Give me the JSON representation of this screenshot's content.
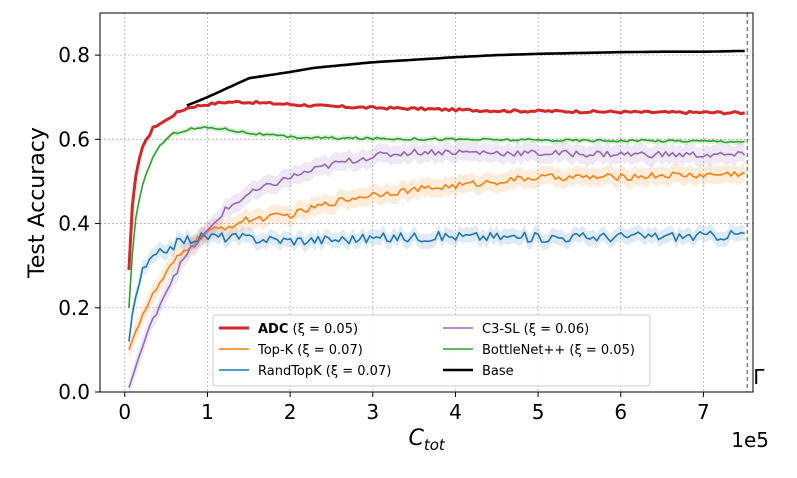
{
  "chart_data": {
    "type": "line",
    "title": "",
    "xlabel_main": "C",
    "xlabel_sub": "tot",
    "ylabel": "Test Accuracy",
    "x_scale_label": "1e5",
    "xlim": [
      -0.3,
      7.6
    ],
    "ylim": [
      0.0,
      0.9
    ],
    "x_ticks": [
      0,
      1,
      2,
      3,
      4,
      5,
      6,
      7
    ],
    "y_ticks": [
      0.0,
      0.2,
      0.4,
      0.6,
      0.8
    ],
    "y_tick_labels": [
      "0.0",
      "0.2",
      "0.4",
      "0.6",
      "0.8"
    ],
    "grid": true,
    "vline": {
      "x": 7.53,
      "label": "Γ"
    },
    "legend_location": "lower-center",
    "series": [
      {
        "name": "ADC",
        "name_suffix": " (ξ = 0.05)",
        "bold_name": true,
        "color": "#d62728",
        "width": 3,
        "x": [
          0.05,
          0.08,
          0.12,
          0.16,
          0.2,
          0.25,
          0.3,
          0.35,
          0.4,
          0.5,
          0.6,
          0.7,
          0.8,
          1.0,
          1.2,
          1.4,
          1.6,
          1.8,
          2.0,
          2.5,
          3.0,
          3.5,
          4.0,
          4.5,
          5.0,
          5.5,
          6.0,
          6.5,
          7.0,
          7.5
        ],
        "y": [
          0.29,
          0.42,
          0.5,
          0.54,
          0.57,
          0.6,
          0.61,
          0.63,
          0.635,
          0.645,
          0.66,
          0.67,
          0.677,
          0.683,
          0.688,
          0.689,
          0.687,
          0.685,
          0.683,
          0.678,
          0.675,
          0.673,
          0.67,
          0.668,
          0.667,
          0.666,
          0.665,
          0.664,
          0.664,
          0.663
        ],
        "noise": 0.003,
        "band": 0
      },
      {
        "name": "Top-K",
        "name_suffix": " (ξ = 0.07)",
        "bold_name": false,
        "color": "#ff7f0e",
        "width": 1.6,
        "x": [
          0.05,
          0.2,
          0.4,
          0.6,
          0.8,
          1.0,
          1.2,
          1.5,
          2.0,
          2.5,
          3.0,
          3.5,
          4.0,
          4.5,
          5.0,
          5.5,
          6.0,
          6.5,
          7.0,
          7.5
        ],
        "y": [
          0.1,
          0.18,
          0.25,
          0.31,
          0.35,
          0.38,
          0.39,
          0.41,
          0.42,
          0.45,
          0.47,
          0.48,
          0.49,
          0.5,
          0.51,
          0.51,
          0.51,
          0.515,
          0.515,
          0.52
        ],
        "noise": 0.008,
        "band": 0.022
      },
      {
        "name": "RandTopK",
        "name_suffix": " (ξ = 0.07)",
        "bold_name": false,
        "color": "#1f77b4",
        "width": 1.6,
        "x": [
          0.05,
          0.1,
          0.2,
          0.3,
          0.5,
          0.7,
          1.0,
          1.5,
          2.0,
          2.5,
          3.0,
          3.5,
          4.0,
          4.5,
          5.0,
          5.5,
          6.0,
          6.5,
          7.0,
          7.5
        ],
        "y": [
          0.12,
          0.2,
          0.28,
          0.31,
          0.34,
          0.36,
          0.37,
          0.365,
          0.36,
          0.362,
          0.365,
          0.368,
          0.37,
          0.368,
          0.367,
          0.368,
          0.369,
          0.37,
          0.37,
          0.375
        ],
        "noise": 0.012,
        "band": 0.018
      },
      {
        "name": "C3-SL",
        "name_suffix": " (ξ = 0.06)",
        "bold_name": false,
        "color": "#9467bd",
        "width": 1.6,
        "x": [
          0.05,
          0.2,
          0.4,
          0.6,
          0.8,
          1.0,
          1.2,
          1.5,
          2.0,
          2.5,
          3.0,
          3.5,
          4.0,
          4.5,
          5.0,
          5.5,
          6.0,
          6.5,
          7.0,
          7.5
        ],
        "y": [
          0.01,
          0.1,
          0.2,
          0.28,
          0.34,
          0.38,
          0.43,
          0.47,
          0.51,
          0.54,
          0.56,
          0.57,
          0.57,
          0.568,
          0.567,
          0.566,
          0.565,
          0.564,
          0.563,
          0.562
        ],
        "noise": 0.008,
        "band": 0.022
      },
      {
        "name": "BottleNet++",
        "name_suffix": " (ξ = 0.05)",
        "bold_name": false,
        "color": "#2ca02c",
        "width": 1.6,
        "x": [
          0.05,
          0.08,
          0.12,
          0.2,
          0.3,
          0.4,
          0.5,
          0.6,
          0.8,
          1.0,
          1.2,
          1.5,
          2.0,
          2.5,
          3.0,
          3.5,
          4.0,
          5.0,
          6.0,
          7.0,
          7.5
        ],
        "y": [
          0.2,
          0.3,
          0.4,
          0.48,
          0.54,
          0.58,
          0.6,
          0.615,
          0.625,
          0.628,
          0.625,
          0.615,
          0.605,
          0.603,
          0.602,
          0.601,
          0.6,
          0.598,
          0.597,
          0.596,
          0.595
        ],
        "noise": 0.003,
        "band": 0.007
      },
      {
        "name": "Base",
        "name_suffix": "",
        "bold_name": false,
        "color": "#000000",
        "width": 2.6,
        "x": [
          0.75,
          1.0,
          1.5,
          2.0,
          2.3,
          3.0,
          4.0,
          4.5,
          5.0,
          5.5,
          6.0,
          6.5,
          7.0,
          7.5
        ],
        "y": [
          0.68,
          0.7,
          0.745,
          0.76,
          0.77,
          0.783,
          0.795,
          0.8,
          0.803,
          0.805,
          0.807,
          0.808,
          0.808,
          0.81
        ],
        "noise": 0,
        "band": 0
      }
    ]
  }
}
